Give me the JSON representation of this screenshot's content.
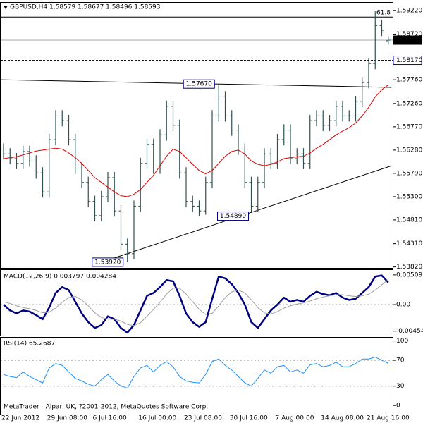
{
  "chart_data": [
    {
      "type": "ohlc",
      "title": "GBPUSD,H4  1.58579 1.58677 1.58496 1.58593",
      "categories": [
        "22 Jun 2012",
        null,
        null,
        null,
        null,
        null,
        null,
        "29 Jun 08:00",
        null,
        null,
        null,
        null,
        null,
        null,
        "6 Jul 16:00",
        null,
        null,
        null,
        null,
        null,
        null,
        "16 Jul 00:00",
        null,
        null,
        null,
        null,
        null,
        null,
        "23 Jul 08:00",
        null,
        null,
        null,
        null,
        null,
        null,
        "30 Jul 16:00",
        null,
        null,
        null,
        null,
        null,
        null,
        "7 Aug 00:00",
        null,
        null,
        null,
        null,
        null,
        null,
        "14 Aug 08:00",
        null,
        null,
        null,
        null,
        null,
        null,
        "21 Aug 16:00",
        null,
        null,
        null
      ],
      "open": [
        1.563,
        1.562,
        1.561,
        1.56,
        1.5625,
        1.5605,
        1.558,
        1.554,
        1.565,
        1.57,
        1.569,
        1.565,
        1.559,
        1.556,
        1.552,
        1.549,
        1.553,
        1.557,
        1.55,
        1.543,
        1.541,
        1.551,
        1.56,
        1.564,
        1.559,
        1.566,
        1.572,
        1.568,
        1.558,
        1.552,
        1.551,
        1.55,
        1.556,
        1.57,
        1.574,
        1.57,
        1.567,
        1.563,
        1.556,
        1.551,
        1.556,
        1.562,
        1.56,
        1.565,
        1.567,
        1.561,
        1.562,
        1.56,
        1.569,
        1.57,
        1.568,
        1.569,
        1.572,
        1.57,
        1.57,
        1.573,
        1.577,
        1.581,
        1.589,
        1.58579
      ],
      "high": [
        1.5642,
        1.5632,
        1.5622,
        1.5637,
        1.5637,
        1.5617,
        1.5592,
        1.5662,
        1.5712,
        1.5712,
        1.5702,
        1.5662,
        1.5602,
        1.5572,
        1.5532,
        1.5542,
        1.5582,
        1.5582,
        1.5512,
        1.5442,
        1.5522,
        1.5612,
        1.5652,
        1.5652,
        1.5672,
        1.5732,
        1.5732,
        1.5692,
        1.5592,
        1.5532,
        1.5522,
        1.5572,
        1.5712,
        1.5767,
        1.5752,
        1.5712,
        1.5682,
        1.5642,
        1.5572,
        1.5572,
        1.5632,
        1.5632,
        1.5662,
        1.5682,
        1.5682,
        1.5632,
        1.5632,
        1.5702,
        1.5712,
        1.5712,
        1.5702,
        1.5732,
        1.5732,
        1.5712,
        1.5742,
        1.5782,
        1.5822,
        1.592,
        1.5902,
        1.58677
      ],
      "low": [
        1.5608,
        1.5598,
        1.5588,
        1.5588,
        1.5593,
        1.5568,
        1.5528,
        1.5528,
        1.5638,
        1.5678,
        1.5638,
        1.5578,
        1.5548,
        1.5508,
        1.5478,
        1.5478,
        1.5518,
        1.5488,
        1.5418,
        1.5392,
        1.5398,
        1.5498,
        1.5588,
        1.5578,
        1.5578,
        1.5648,
        1.5668,
        1.5568,
        1.5508,
        1.5498,
        1.5489,
        1.5492,
        1.5548,
        1.5688,
        1.5688,
        1.5658,
        1.5618,
        1.5548,
        1.5498,
        1.5498,
        1.5548,
        1.5588,
        1.5588,
        1.5638,
        1.5598,
        1.5598,
        1.5588,
        1.5588,
        1.5678,
        1.5668,
        1.5668,
        1.5678,
        1.5688,
        1.5688,
        1.5688,
        1.5718,
        1.5758,
        1.5798,
        1.5868,
        1.58496
      ],
      "close": [
        1.562,
        1.561,
        1.56,
        1.5625,
        1.5605,
        1.558,
        1.554,
        1.565,
        1.57,
        1.569,
        1.565,
        1.559,
        1.556,
        1.552,
        1.549,
        1.553,
        1.557,
        1.55,
        1.543,
        1.541,
        1.551,
        1.56,
        1.564,
        1.559,
        1.566,
        1.572,
        1.568,
        1.558,
        1.552,
        1.551,
        1.55,
        1.556,
        1.57,
        1.574,
        1.57,
        1.567,
        1.563,
        1.556,
        1.551,
        1.556,
        1.562,
        1.56,
        1.565,
        1.567,
        1.561,
        1.562,
        1.56,
        1.569,
        1.57,
        1.568,
        1.569,
        1.572,
        1.57,
        1.57,
        1.573,
        1.577,
        1.581,
        1.589,
        1.588,
        1.58593
      ],
      "color": "#2f4f4f",
      "series": [
        {
          "color": "#e00000",
          "values": [
            1.561,
            1.5612,
            1.5614,
            1.5618,
            1.5622,
            1.5626,
            1.5628,
            1.563,
            1.5632,
            1.563,
            1.5622,
            1.5612,
            1.56,
            1.5585,
            1.557,
            1.556,
            1.555,
            1.554,
            1.5532,
            1.553,
            1.5535,
            1.5545,
            1.556,
            1.5575,
            1.5595,
            1.5615,
            1.563,
            1.5625,
            1.5612,
            1.5598,
            1.5585,
            1.5578,
            1.5585,
            1.56,
            1.5615,
            1.5625,
            1.5628,
            1.562,
            1.5605,
            1.5598,
            1.5595,
            1.5598,
            1.5603,
            1.561,
            1.5612,
            1.5614,
            1.5615,
            1.5622,
            1.5632,
            1.564,
            1.565,
            1.566,
            1.5668,
            1.5675,
            1.5685,
            1.57,
            1.5718,
            1.574,
            1.5755,
            1.5765
          ]
        }
      ],
      "ylim": [
        1.538,
        1.5938
      ],
      "yticks": [
        {
          "value": 1.5922,
          "label": "1.59220"
        },
        {
          "value": 1.5872,
          "label": "1.58720"
        },
        {
          "value": 1.5776,
          "label": "1.57760"
        },
        {
          "value": 1.5726,
          "label": "1.57260"
        },
        {
          "value": 1.5677,
          "label": "1.56770"
        },
        {
          "value": 1.5628,
          "label": "1.56280"
        },
        {
          "value": 1.5579,
          "label": "1.55790"
        },
        {
          "value": 1.553,
          "label": "1.55300"
        },
        {
          "value": 1.5481,
          "label": "1.54810"
        },
        {
          "value": 1.5431,
          "label": "1.54310"
        },
        {
          "value": 1.5382,
          "label": "1.53820"
        }
      ],
      "hlines": [
        {
          "value": 1.5908,
          "label": "61.8",
          "color": "#000000",
          "style": "solid",
          "label_place": "line"
        },
        {
          "value": 1.5817,
          "label": "1.58170",
          "color": "#0000cc",
          "style": "dashed",
          "label_place": "axis"
        },
        {
          "value": 1.58593,
          "label": "1.58593",
          "color": "#aaaaaa",
          "style": "solid",
          "label_place": "axis-dark"
        }
      ],
      "trendlines": [
        {
          "x": [
            -0.5,
            59.5
          ],
          "y": [
            1.5776,
            1.576
          ]
        },
        {
          "x": [
            13.5,
            59.5
          ],
          "y": [
            1.5385,
            1.5595
          ]
        }
      ],
      "price_labels": [
        {
          "value": 1.5767,
          "label": "1.57670",
          "side": "left"
        },
        {
          "value": 1.5489,
          "label": "1.54890",
          "side": "right"
        },
        {
          "value": 1.5392,
          "label": "1.53920",
          "side": "left"
        }
      ]
    },
    {
      "type": "line",
      "title": "MACD(12,26,9) 0.003797 0.004284",
      "series": [
        {
          "color": "#000080",
          "width": 2.5,
          "values": [
            0.0,
            -0.001,
            -0.0015,
            -0.001,
            -0.0012,
            -0.0018,
            -0.0025,
            -0.0005,
            0.002,
            0.003,
            0.0025,
            0.0005,
            -0.0015,
            -0.003,
            -0.004,
            -0.0035,
            -0.002,
            -0.0025,
            -0.004,
            -0.0048,
            -0.0035,
            -0.001,
            0.0015,
            0.002,
            0.003,
            0.0042,
            0.004,
            0.0015,
            -0.0015,
            -0.003,
            -0.0038,
            -0.003,
            0.001,
            0.0048,
            0.0045,
            0.0035,
            0.002,
            0.0,
            -0.003,
            -0.004,
            -0.0025,
            -0.001,
            0.0,
            0.0012,
            0.0005,
            0.0008,
            0.0005,
            0.0015,
            0.0022,
            0.0018,
            0.0016,
            0.002,
            0.0012,
            0.0008,
            0.001,
            0.002,
            0.003,
            0.0048,
            0.005,
            0.003797
          ]
        },
        {
          "color": "#a0a0a0",
          "width": 1,
          "values": [
            0.0005,
            0.0002,
            -0.0002,
            -0.0005,
            -0.0007,
            -0.001,
            -0.0014,
            -0.0013,
            -0.0006,
            0.0004,
            0.0012,
            0.0014,
            0.0008,
            -0.0002,
            -0.0014,
            -0.0022,
            -0.0025,
            -0.0025,
            -0.0028,
            -0.0034,
            -0.0036,
            -0.0031,
            -0.002,
            -0.0008,
            0.0004,
            0.0018,
            0.0028,
            0.0028,
            0.0018,
            0.0005,
            -0.0008,
            -0.0017,
            -0.0015,
            -0.0002,
            0.0012,
            0.0022,
            0.0025,
            0.002,
            0.0008,
            -0.0005,
            -0.0014,
            -0.0016,
            -0.0012,
            -0.0006,
            -0.0002,
            0.0001,
            0.0003,
            0.0006,
            0.001,
            0.0013,
            0.0015,
            0.0017,
            0.0017,
            0.0015,
            0.0014,
            0.0015,
            0.0018,
            0.0025,
            0.0034,
            0.004284
          ]
        }
      ],
      "ylim": [
        -0.0053,
        0.0058
      ],
      "yticks": [
        0.00509,
        {
          "value": 0,
          "label": "0.00"
        },
        -0.00454
      ],
      "levels": [
        0
      ]
    },
    {
      "type": "line",
      "title": "RSI(14) 65.2687",
      "series": [
        {
          "color": "#1e90ff",
          "width": 1,
          "values": [
            48,
            45,
            43,
            52,
            45,
            40,
            35,
            58,
            65,
            62,
            52,
            42,
            38,
            33,
            30,
            40,
            48,
            38,
            30,
            27,
            45,
            58,
            62,
            52,
            62,
            68,
            60,
            45,
            38,
            36,
            35,
            48,
            68,
            72,
            62,
            55,
            45,
            35,
            30,
            42,
            55,
            50,
            60,
            62,
            52,
            55,
            50,
            63,
            65,
            60,
            62,
            67,
            60,
            60,
            65,
            72,
            72,
            75,
            70,
            65.2687
          ]
        }
      ],
      "ylim": [
        -14,
        105
      ],
      "yticks": [
        100,
        70,
        30,
        0
      ],
      "levels": [
        70,
        30
      ]
    }
  ],
  "footer": "MetaTrader - Alpari UK, ?2001-2012, MetaQuotes Software Corp."
}
